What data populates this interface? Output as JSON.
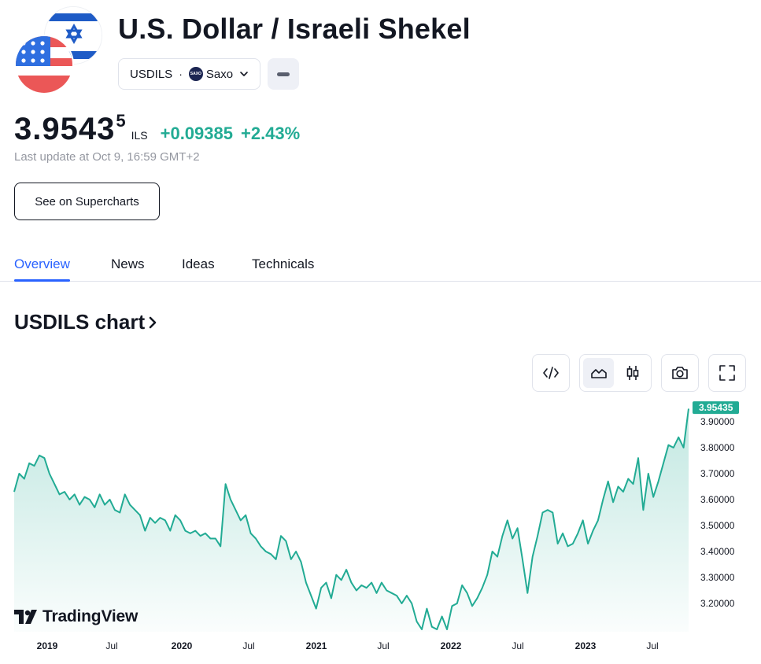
{
  "header": {
    "title": "U.S. Dollar / Israeli Shekel",
    "symbol": "USDILS",
    "separator": "·",
    "exchange": "Saxo"
  },
  "quote": {
    "price_main": "3.9543",
    "price_sup": "5",
    "currency": "ILS",
    "change": "+0.09385",
    "change_pct": "+2.43%",
    "last_update": "Last update at Oct 9, 16:59 GMT+2"
  },
  "buttons": {
    "supercharts": "See on Supercharts"
  },
  "tabs": [
    {
      "label": "Overview",
      "active": true
    },
    {
      "label": "News",
      "active": false
    },
    {
      "label": "Ideas",
      "active": false
    },
    {
      "label": "Technicals",
      "active": false
    }
  ],
  "chart_section": {
    "heading": "USDILS chart",
    "logo_text": "TradingView"
  },
  "colors": {
    "line": "#22ab94",
    "accent": "#2962ff",
    "price_label_bg": "#22ab94"
  },
  "chart_data": {
    "type": "area",
    "title": "",
    "xlabel": "",
    "ylabel": "",
    "ylim": [
      3.1,
      3.97
    ],
    "y_ticks": [
      "3.90000",
      "3.80000",
      "3.70000",
      "3.60000",
      "3.50000",
      "3.40000",
      "3.30000",
      "3.20000"
    ],
    "x_ticks": [
      "2019",
      "Jul",
      "2020",
      "Jul",
      "2021",
      "Jul",
      "2022",
      "Jul",
      "2023",
      "Jul"
    ],
    "last_price_label": "3.95435",
    "grid": false,
    "series": [
      {
        "x_start": "2018-10",
        "x_end": "2023-10",
        "values": [
          3.63,
          3.7,
          3.68,
          3.74,
          3.73,
          3.77,
          3.76,
          3.7,
          3.66,
          3.62,
          3.63,
          3.6,
          3.62,
          3.58,
          3.61,
          3.6,
          3.57,
          3.62,
          3.58,
          3.6,
          3.56,
          3.55,
          3.62,
          3.58,
          3.56,
          3.54,
          3.48,
          3.53,
          3.51,
          3.53,
          3.52,
          3.48,
          3.54,
          3.52,
          3.48,
          3.47,
          3.48,
          3.46,
          3.47,
          3.45,
          3.45,
          3.42,
          3.66,
          3.6,
          3.56,
          3.52,
          3.54,
          3.47,
          3.45,
          3.42,
          3.4,
          3.39,
          3.37,
          3.46,
          3.44,
          3.37,
          3.4,
          3.36,
          3.28,
          3.23,
          3.18,
          3.26,
          3.28,
          3.22,
          3.31,
          3.29,
          3.33,
          3.28,
          3.25,
          3.27,
          3.26,
          3.28,
          3.24,
          3.28,
          3.25,
          3.24,
          3.23,
          3.2,
          3.23,
          3.2,
          3.13,
          3.1,
          3.18,
          3.11,
          3.1,
          3.15,
          3.1,
          3.19,
          3.2,
          3.27,
          3.24,
          3.19,
          3.22,
          3.26,
          3.31,
          3.4,
          3.38,
          3.46,
          3.52,
          3.45,
          3.49,
          3.37,
          3.24,
          3.38,
          3.46,
          3.55,
          3.56,
          3.55,
          3.43,
          3.47,
          3.42,
          3.43,
          3.47,
          3.52,
          3.43,
          3.48,
          3.52,
          3.6,
          3.67,
          3.59,
          3.65,
          3.63,
          3.68,
          3.66,
          3.76,
          3.56,
          3.7,
          3.61,
          3.67,
          3.74,
          3.81,
          3.8,
          3.84,
          3.8,
          3.95
        ]
      }
    ]
  }
}
